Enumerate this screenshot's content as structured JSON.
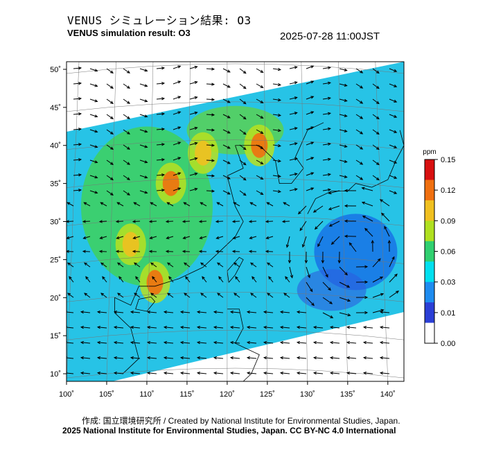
{
  "header": {
    "title_ja": "VENUS シミュレーション結果: O3",
    "title_en": "VENUS simulation result: O3",
    "timestamp": "2025-07-28 11:00JST"
  },
  "footer": {
    "credit": "作成: 国立環境研究所 / Created by National Institute for Environmental Studies, Japan.",
    "license": "2025 National Institute for Environmental Studies, Japan. CC BY-NC 4.0 International"
  },
  "chart_data": {
    "type": "heatmap",
    "title": "VENUS simulation result: O3",
    "xlim": [
      100,
      142
    ],
    "ylim": [
      9,
      51
    ],
    "x_ticks": [
      "100˚",
      "105˚",
      "110˚",
      "115˚",
      "120˚",
      "125˚",
      "130˚",
      "135˚",
      "140˚"
    ],
    "y_ticks": [
      "10˚",
      "15˚",
      "20˚",
      "25˚",
      "30˚",
      "35˚",
      "40˚",
      "45˚",
      "50˚"
    ],
    "colorbar": {
      "unit": "ppm",
      "ticks": [
        "0.15",
        "0.12",
        "0.09",
        "0.06",
        "0.03",
        "0.01",
        "0.00"
      ],
      "colors": [
        "#ffffff",
        "#2b3fd6",
        "#1e8cf0",
        "#00e0f0",
        "#30d070",
        "#b0e020",
        "#f0c020",
        "#f07010",
        "#d81010"
      ]
    },
    "grid": true,
    "legend": "right",
    "overlay": "wind vectors",
    "hotspots": [
      {
        "lon": 113,
        "lat": 35,
        "value": 0.11
      },
      {
        "lon": 124,
        "lat": 40,
        "value": 0.11
      },
      {
        "lon": 108,
        "lat": 27,
        "value": 0.1
      },
      {
        "lon": 111,
        "lat": 22,
        "value": 0.11
      },
      {
        "lon": 117,
        "lat": 39,
        "value": 0.1
      }
    ],
    "low_region": {
      "lon": 136,
      "lat": 26,
      "value": 0.01
    }
  }
}
